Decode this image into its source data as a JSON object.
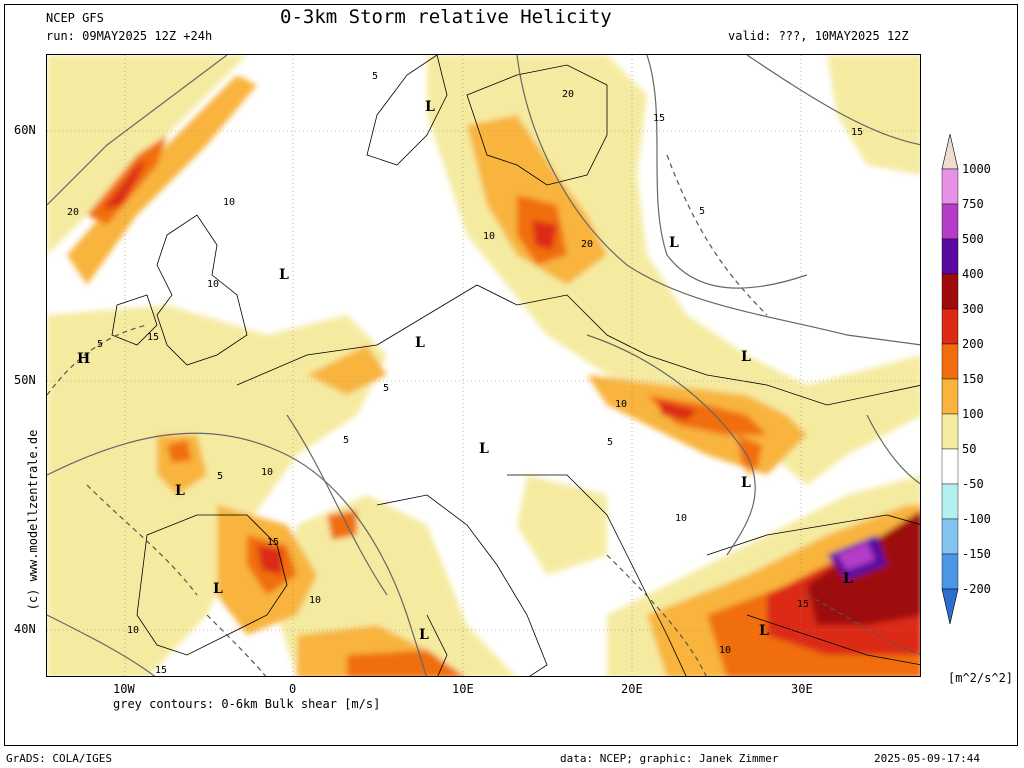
{
  "header": {
    "model": "NCEP GFS",
    "title": "0-3km Storm relative Helicity",
    "run": "run: 09MAY2025 12Z +24h",
    "valid": "valid: ???, 10MAY2025 12Z"
  },
  "map": {
    "lat_labels": [
      "60N",
      "50N",
      "40N"
    ],
    "lon_labels": [
      "10W",
      "0",
      "10E",
      "20E",
      "30E"
    ],
    "contour_note": "grey contours: 0-6km Bulk shear [m/s]",
    "pressure_labels": [
      "L",
      "L",
      "L",
      "L",
      "L",
      "L",
      "L",
      "L",
      "L",
      "L",
      "L",
      "L",
      "H"
    ],
    "contour_value_labels": [
      "5",
      "5",
      "5",
      "5",
      "5",
      "5",
      "5",
      "10",
      "10",
      "10",
      "10",
      "10",
      "10",
      "10",
      "10",
      "10",
      "15",
      "15",
      "15",
      "15",
      "15",
      "15",
      "20",
      "20",
      "20"
    ]
  },
  "colorbar": {
    "labels": [
      "1000",
      "750",
      "500",
      "400",
      "300",
      "200",
      "150",
      "100",
      "50",
      "-50",
      "-100",
      "-150",
      "-200"
    ],
    "colors": [
      "#f0dcd0",
      "#e690e6",
      "#b43cc8",
      "#5a0aa0",
      "#9e0b0b",
      "#dc2a14",
      "#f06e0f",
      "#f8b43c",
      "#f5eba0",
      "#ffffff",
      "#b4f0f0",
      "#82c3f0",
      "#4b96e6",
      "#2d6ed2"
    ],
    "units": "[m^2/s^2]"
  },
  "footer": {
    "left": "GrADS: COLA/IGES",
    "mid": "data: NCEP; graphic: Janek Zimmer",
    "right": "2025-05-09-17:44"
  },
  "watermark": "(c) www.modellzentrale.de"
}
